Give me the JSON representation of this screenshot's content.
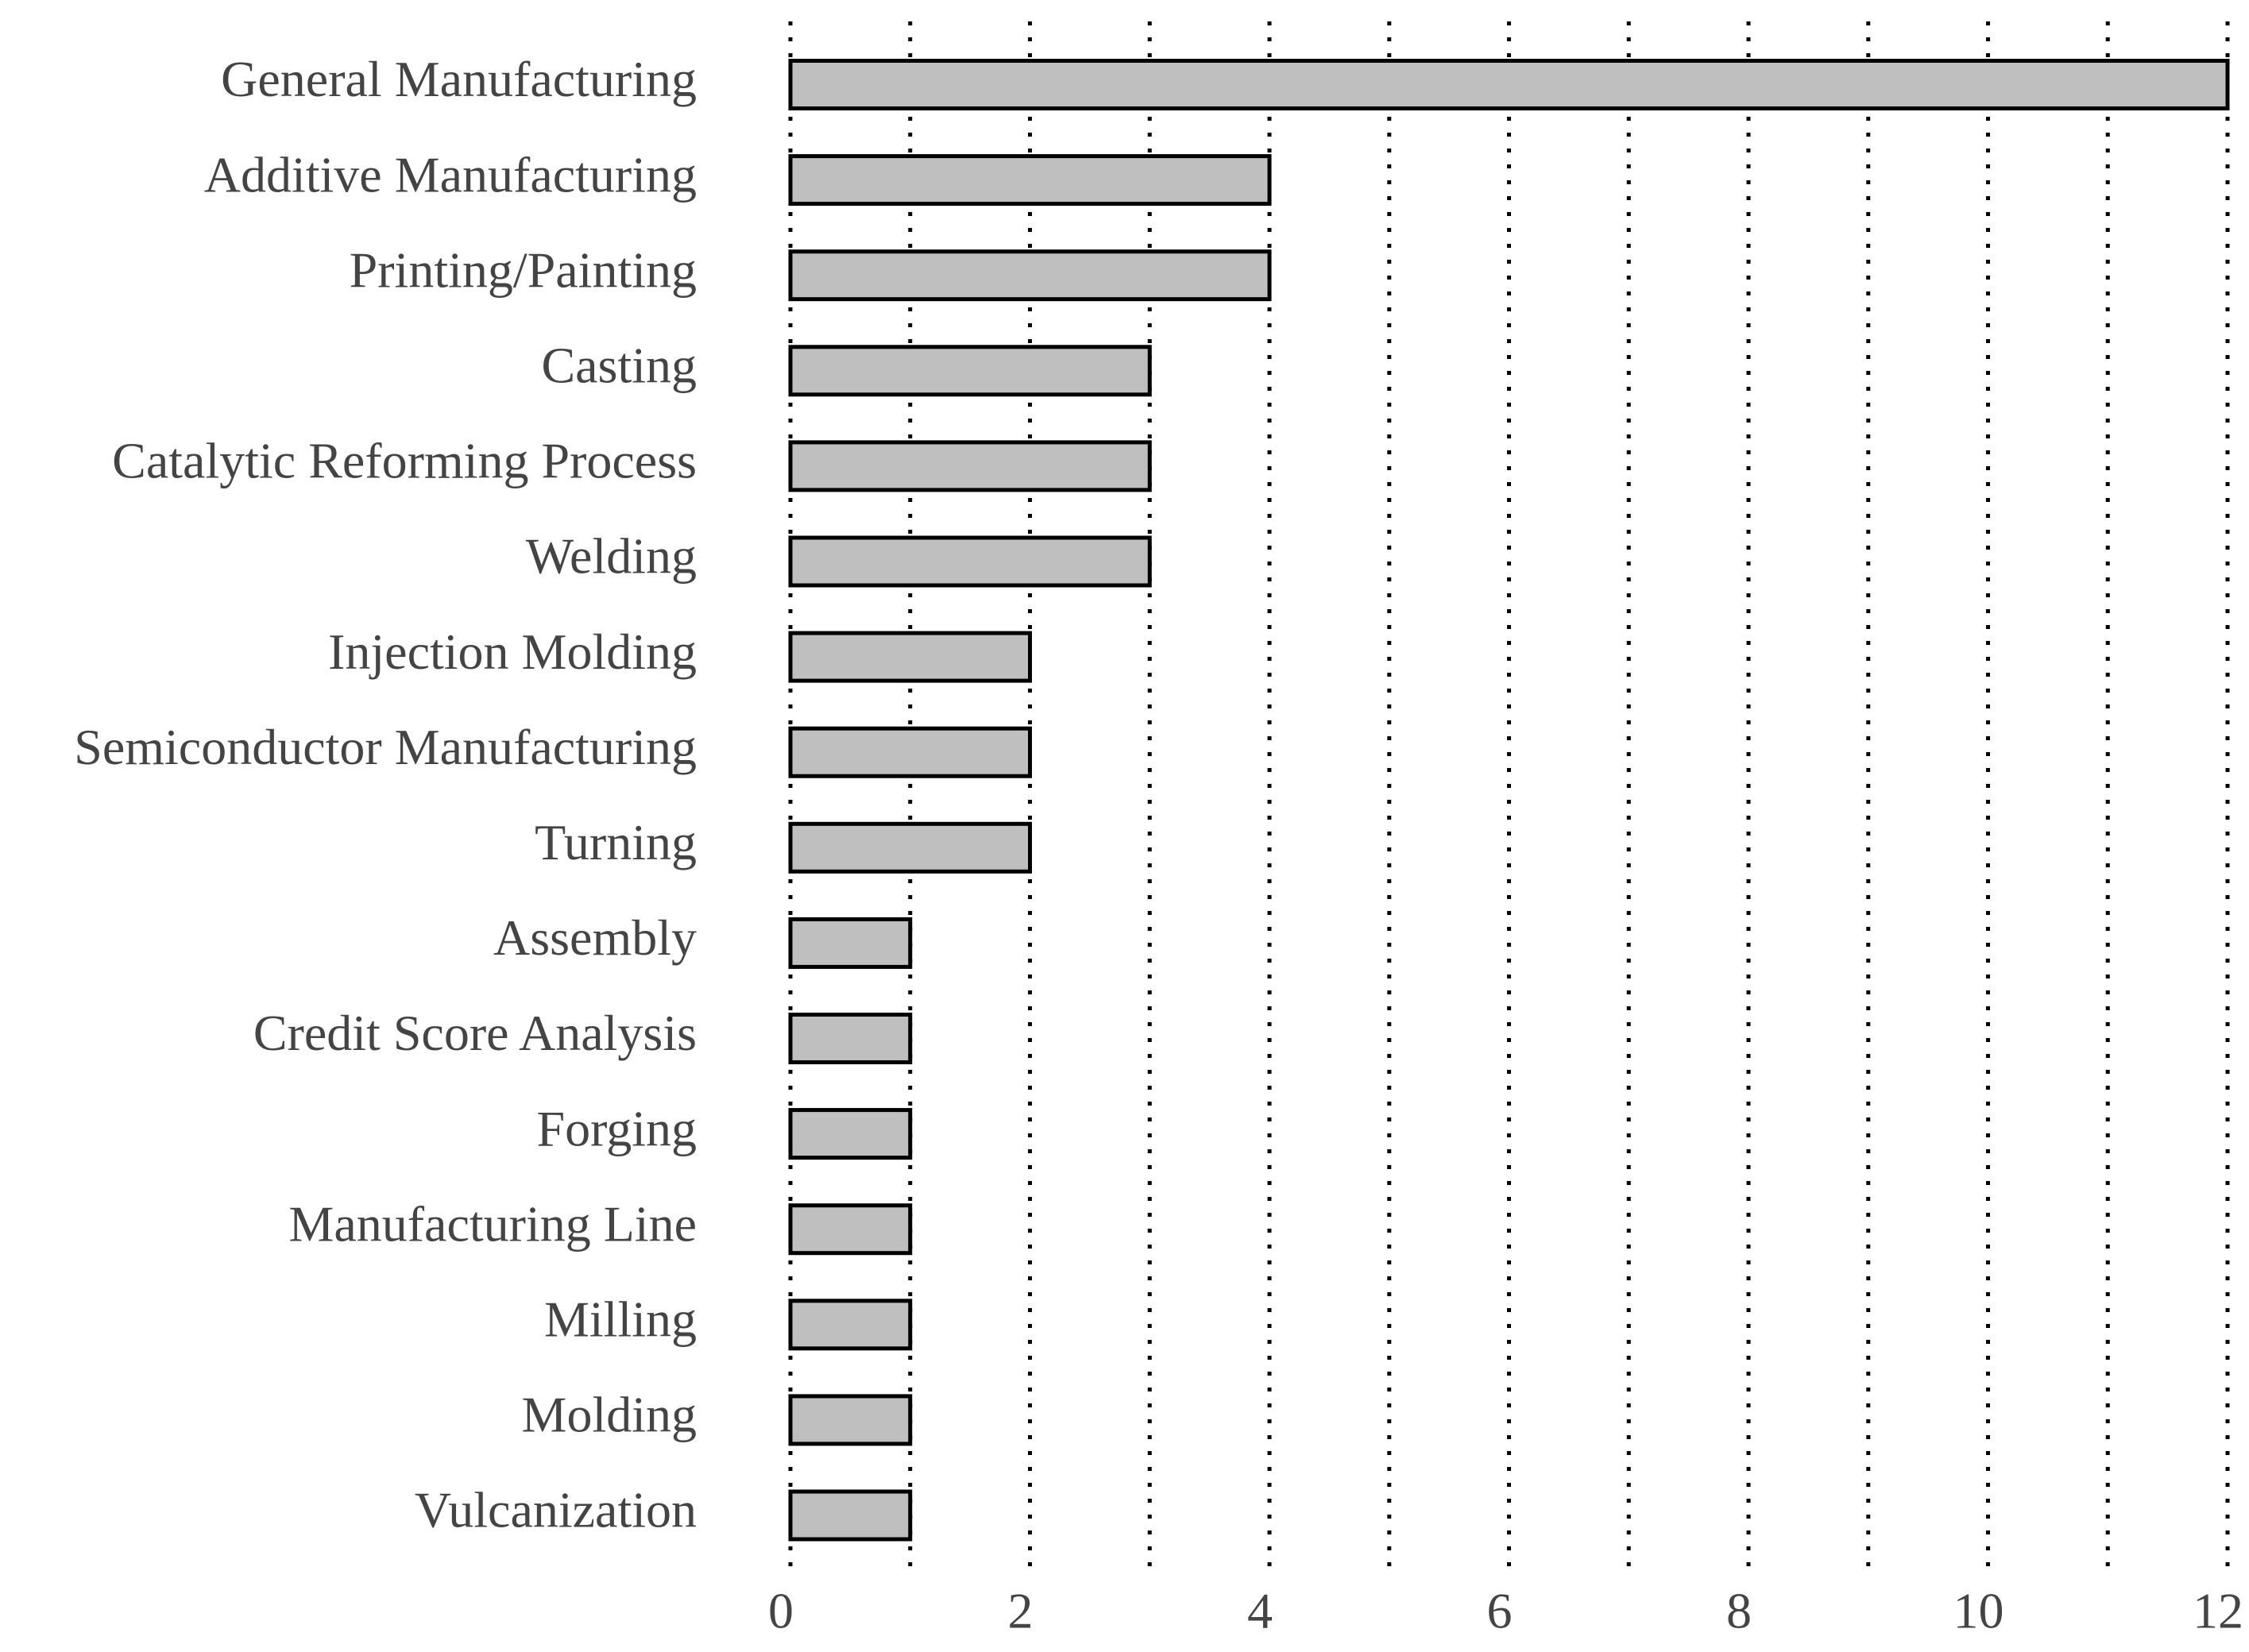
{
  "chart_data": {
    "type": "hbar",
    "categories": [
      "General Manufacturing",
      "Additive Manufacturing",
      "Printing/Painting",
      "Casting",
      "Catalytic Reforming Process",
      "Welding",
      "Injection Molding",
      "Semiconductor Manufacturing",
      "Turning",
      "Assembly",
      "Credit Score Analysis",
      "Forging",
      "Manufacturing Line",
      "Milling",
      "Molding",
      "Vulcanization"
    ],
    "values": [
      12,
      4,
      4,
      3,
      3,
      3,
      2,
      2,
      2,
      1,
      1,
      1,
      1,
      1,
      1,
      1
    ],
    "color": "#bfbfbf",
    "edge_color": "#000000",
    "xlim": [
      0,
      12
    ],
    "xticks": [
      0,
      2,
      4,
      6,
      8,
      10,
      12
    ],
    "x_minor_ticks": [
      1,
      3,
      5,
      7,
      9,
      11
    ],
    "grid": true
  }
}
